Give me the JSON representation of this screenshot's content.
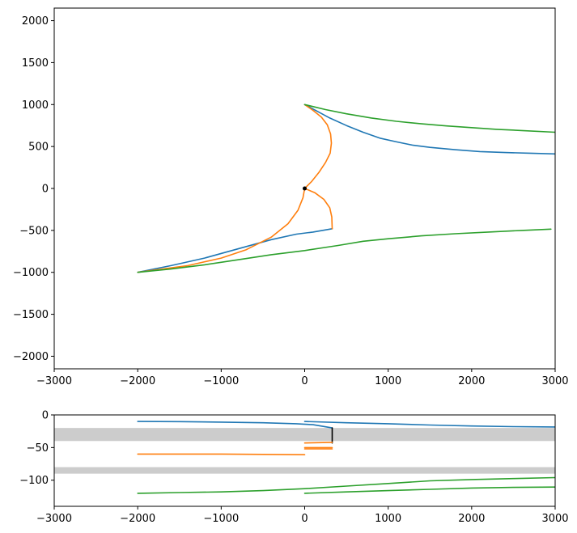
{
  "chart_data": [
    {
      "type": "line",
      "title": "",
      "xlabel": "",
      "ylabel": "",
      "xlim": [
        -3000,
        3000
      ],
      "ylim": [
        -2150,
        2150
      ],
      "xticks": [
        -3000,
        -2000,
        -1000,
        0,
        1000,
        2000,
        3000
      ],
      "yticks": [
        -2000,
        -1500,
        -1000,
        -500,
        0,
        500,
        1000,
        1500,
        2000
      ],
      "xtick_labels": [
        "−3000",
        "−2000",
        "−1000",
        "0",
        "1000",
        "2000",
        "3000"
      ],
      "ytick_labels": [
        "−2000",
        "−1500",
        "−1000",
        "−500",
        "0",
        "500",
        "1000",
        "1500",
        "2000"
      ],
      "grid": false,
      "series": [
        {
          "color": "#1f77b4",
          "points": [
            [
              0,
              1000
            ],
            [
              150,
              920
            ],
            [
              300,
              840
            ],
            [
              500,
              750
            ],
            [
              700,
              670
            ],
            [
              900,
              600
            ],
            [
              1100,
              555
            ],
            [
              1300,
              515
            ],
            [
              1500,
              490
            ],
            [
              1800,
              462
            ],
            [
              2100,
              440
            ],
            [
              2400,
              428
            ],
            [
              2700,
              420
            ],
            [
              3000,
              412
            ]
          ]
        },
        {
          "color": "#1f77b4",
          "points": [
            [
              -2000,
              -1000
            ],
            [
              -1600,
              -920
            ],
            [
              -1200,
              -830
            ],
            [
              -800,
              -720
            ],
            [
              -400,
              -610
            ],
            [
              -100,
              -545
            ],
            [
              100,
              -520
            ],
            [
              330,
              -480
            ]
          ]
        },
        {
          "color": "#ff7f0e",
          "points": [
            [
              0,
              1000
            ],
            [
              100,
              930
            ],
            [
              200,
              850
            ],
            [
              270,
              760
            ],
            [
              310,
              650
            ],
            [
              320,
              540
            ],
            [
              305,
              420
            ],
            [
              250,
              310
            ],
            [
              170,
              190
            ],
            [
              80,
              80
            ],
            [
              0,
              0
            ]
          ]
        },
        {
          "color": "#ff7f0e",
          "points": [
            [
              0,
              0
            ],
            [
              120,
              -50
            ],
            [
              230,
              -130
            ],
            [
              300,
              -230
            ],
            [
              325,
              -340
            ],
            [
              330,
              -480
            ]
          ]
        },
        {
          "color": "#ff7f0e",
          "points": [
            [
              0,
              0
            ],
            [
              -20,
              -110
            ],
            [
              -80,
              -260
            ],
            [
              -200,
              -420
            ],
            [
              -400,
              -580
            ],
            [
              -700,
              -730
            ],
            [
              -1000,
              -830
            ],
            [
              -1400,
              -920
            ],
            [
              -2000,
              -1000
            ]
          ]
        },
        {
          "color": "#2ca02c",
          "points": [
            [
              0,
              1000
            ],
            [
              250,
              940
            ],
            [
              500,
              890
            ],
            [
              800,
              840
            ],
            [
              1100,
              800
            ],
            [
              1400,
              770
            ],
            [
              1700,
              745
            ],
            [
              2000,
              725
            ],
            [
              2300,
              705
            ],
            [
              2600,
              690
            ],
            [
              3000,
              670
            ]
          ]
        },
        {
          "color": "#2ca02c",
          "points": [
            [
              -2000,
              -1000
            ],
            [
              -1600,
              -960
            ],
            [
              -1200,
              -910
            ],
            [
              -800,
              -850
            ],
            [
              -400,
              -790
            ],
            [
              0,
              -740
            ],
            [
              400,
              -680
            ],
            [
              700,
              -630
            ],
            [
              1000,
              -600
            ],
            [
              1400,
              -565
            ],
            [
              1800,
              -540
            ],
            [
              2200,
              -520
            ],
            [
              2600,
              -500
            ],
            [
              2950,
              -485
            ]
          ]
        }
      ],
      "markers": [
        {
          "x": 0,
          "y": 0,
          "color": "#000000"
        }
      ]
    },
    {
      "type": "line",
      "title": "",
      "xlabel": "",
      "ylabel": "",
      "xlim": [
        -3000,
        3000
      ],
      "ylim": [
        -140,
        0
      ],
      "xticks": [
        -3000,
        -2000,
        -1000,
        0,
        1000,
        2000,
        3000
      ],
      "yticks": [
        0,
        -50,
        -100
      ],
      "xtick_labels": [
        "−3000",
        "−2000",
        "−1000",
        "0",
        "1000",
        "2000",
        "3000"
      ],
      "ytick_labels": [
        "0",
        "−50",
        "−100"
      ],
      "grid": false,
      "bands": [
        {
          "y0": -20,
          "y1": -40,
          "color": "#cccccc"
        },
        {
          "y0": -80,
          "y1": -90,
          "color": "#cccccc"
        }
      ],
      "series": [
        {
          "color": "#1f77b4",
          "points": [
            [
              -2000,
              -10
            ],
            [
              -1500,
              -10.3
            ],
            [
              -1000,
              -11
            ],
            [
              -500,
              -12
            ],
            [
              -100,
              -13.5
            ],
            [
              100,
              -15
            ],
            [
              330,
              -20
            ]
          ]
        },
        {
          "color": "#1f77b4",
          "points": [
            [
              0,
              -10
            ],
            [
              500,
              -12
            ],
            [
              1000,
              -13.5
            ],
            [
              1500,
              -15.5
            ],
            [
              2000,
              -17
            ],
            [
              2500,
              -18
            ],
            [
              3000,
              -18.5
            ]
          ]
        },
        {
          "color": "#000000",
          "points": [
            [
              330,
              -20
            ],
            [
              330,
              -43
            ]
          ]
        },
        {
          "color": "#ff7f0e",
          "points": [
            [
              -2000,
              -60
            ],
            [
              -1000,
              -60
            ],
            [
              0,
              -61
            ]
          ]
        },
        {
          "color": "#ff7f0e",
          "points": [
            [
              0,
              -43
            ],
            [
              330,
              -42
            ]
          ]
        },
        {
          "color": "#ff7f0e",
          "points": [
            [
              0,
              -50
            ],
            [
              330,
              -50
            ]
          ]
        },
        {
          "color": "#ff7f0e",
          "points": [
            [
              0,
              -52
            ],
            [
              330,
              -52
            ]
          ]
        },
        {
          "color": "#2ca02c",
          "points": [
            [
              -2000,
              -120
            ],
            [
              -1500,
              -119
            ],
            [
              -1000,
              -118
            ],
            [
              -500,
              -116
            ],
            [
              0,
              -113
            ],
            [
              500,
              -109
            ],
            [
              1000,
              -105
            ],
            [
              1500,
              -101
            ],
            [
              2000,
              -99
            ],
            [
              2500,
              -97.5
            ],
            [
              3000,
              -96
            ]
          ]
        },
        {
          "color": "#2ca02c",
          "points": [
            [
              0,
              -120
            ],
            [
              500,
              -118
            ],
            [
              1000,
              -116
            ],
            [
              1500,
              -114
            ],
            [
              2000,
              -112
            ],
            [
              2500,
              -111
            ],
            [
              3000,
              -110.5
            ]
          ]
        }
      ]
    }
  ]
}
